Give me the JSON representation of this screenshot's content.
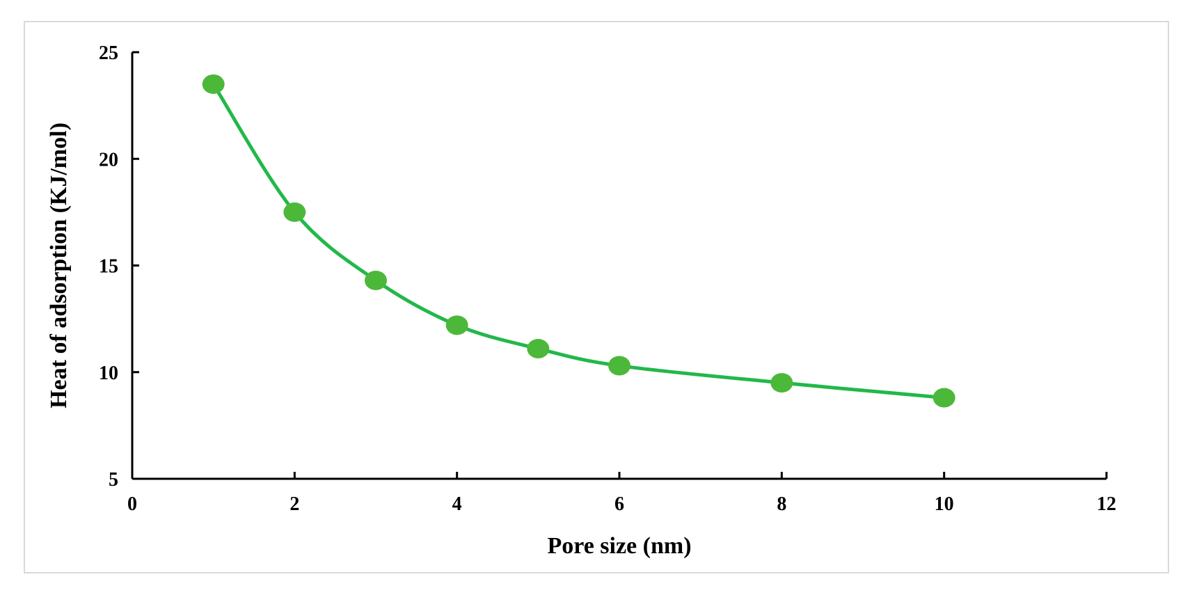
{
  "chart_data": {
    "type": "scatter",
    "title": "",
    "xlabel": "Pore size (nm)",
    "ylabel": "Heat of adsorption (KJ/mol)",
    "xlim": [
      0,
      12
    ],
    "ylim": [
      5,
      25
    ],
    "x_ticks": [
      0,
      2,
      4,
      6,
      8,
      10,
      12
    ],
    "y_ticks": [
      5,
      10,
      15,
      20,
      25
    ],
    "grid": false,
    "smooth_line": true,
    "color": "#22b84a",
    "marker_color": "#4cb83a",
    "series": [
      {
        "x": [
          1,
          2,
          3,
          4,
          5,
          6,
          8,
          10
        ],
        "y": [
          23.5,
          17.5,
          14.3,
          12.2,
          11.1,
          10.3,
          9.5,
          8.8
        ]
      }
    ]
  }
}
